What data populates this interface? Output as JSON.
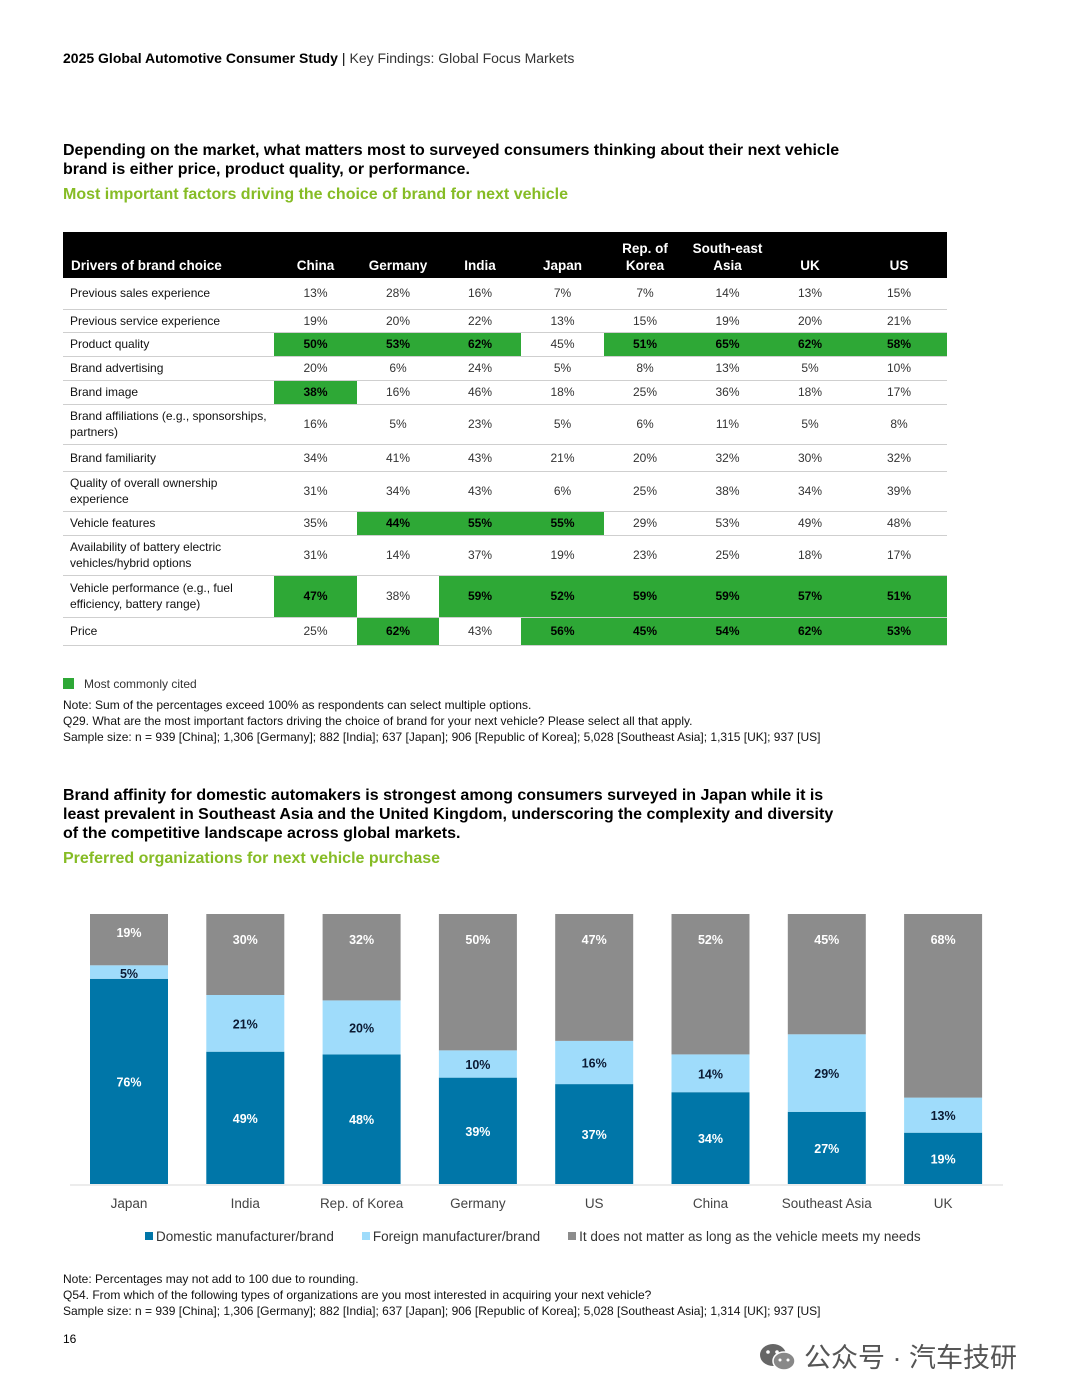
{
  "header": {
    "title": "2025 Global Automotive Consumer Study",
    "separator": "|",
    "subtitle": "Key Findings: Global Focus Markets"
  },
  "section1": {
    "headline": "Depending on the market, what matters most to surveyed consumers thinking about their next vehicle brand is either price, product quality, or performance.",
    "subtitle": "Most important factors driving the choice of brand for next vehicle"
  },
  "table": {
    "headers": [
      "Drivers of brand choice",
      "China",
      "Germany",
      "India",
      "Japan",
      "Rep. of Korea",
      "South-east Asia",
      "UK",
      "US"
    ],
    "rows": [
      {
        "label": "Previous sales experience",
        "values": [
          "13%",
          "28%",
          "16%",
          "7%",
          "7%",
          "14%",
          "13%",
          "15%"
        ],
        "hl": [
          0,
          0,
          0,
          0,
          0,
          0,
          0,
          0
        ]
      },
      {
        "label": "Previous service experience",
        "values": [
          "19%",
          "20%",
          "22%",
          "13%",
          "15%",
          "19%",
          "20%",
          "21%"
        ],
        "hl": [
          0,
          0,
          0,
          0,
          0,
          0,
          0,
          0
        ]
      },
      {
        "label": "Product quality",
        "values": [
          "50%",
          "53%",
          "62%",
          "45%",
          "51%",
          "65%",
          "62%",
          "58%"
        ],
        "hl": [
          1,
          1,
          1,
          0,
          1,
          1,
          1,
          1
        ]
      },
      {
        "label": "Brand advertising",
        "values": [
          "20%",
          "6%",
          "24%",
          "5%",
          "8%",
          "13%",
          "5%",
          "10%"
        ],
        "hl": [
          0,
          0,
          0,
          0,
          0,
          0,
          0,
          0
        ]
      },
      {
        "label": "Brand image",
        "values": [
          "38%",
          "16%",
          "46%",
          "18%",
          "25%",
          "36%",
          "18%",
          "17%"
        ],
        "hl": [
          1,
          0,
          0,
          0,
          0,
          0,
          0,
          0
        ]
      },
      {
        "label": "Brand affiliations (e.g., sponsorships, partners)",
        "values": [
          "16%",
          "5%",
          "23%",
          "5%",
          "6%",
          "11%",
          "5%",
          "8%"
        ],
        "hl": [
          0,
          0,
          0,
          0,
          0,
          0,
          0,
          0
        ]
      },
      {
        "label": "Brand familiarity",
        "values": [
          "34%",
          "41%",
          "43%",
          "21%",
          "20%",
          "32%",
          "30%",
          "32%"
        ],
        "hl": [
          0,
          0,
          0,
          0,
          0,
          0,
          0,
          0
        ]
      },
      {
        "label": "Quality of overall ownership experience",
        "values": [
          "31%",
          "34%",
          "43%",
          "6%",
          "25%",
          "38%",
          "34%",
          "39%"
        ],
        "hl": [
          0,
          0,
          0,
          0,
          0,
          0,
          0,
          0
        ]
      },
      {
        "label": "Vehicle features",
        "values": [
          "35%",
          "44%",
          "55%",
          "55%",
          "29%",
          "53%",
          "49%",
          "48%"
        ],
        "hl": [
          0,
          1,
          1,
          1,
          0,
          0,
          0,
          0
        ]
      },
      {
        "label": "Availability of battery electric vehicles/hybrid options",
        "values": [
          "31%",
          "14%",
          "37%",
          "19%",
          "23%",
          "25%",
          "18%",
          "17%"
        ],
        "hl": [
          0,
          0,
          0,
          0,
          0,
          0,
          0,
          0
        ]
      },
      {
        "label": "Vehicle performance (e.g., fuel efficiency, battery range)",
        "values": [
          "47%",
          "38%",
          "59%",
          "52%",
          "59%",
          "59%",
          "57%",
          "51%"
        ],
        "hl": [
          1,
          0,
          1,
          1,
          1,
          1,
          1,
          1
        ]
      },
      {
        "label": "Price",
        "values": [
          "25%",
          "62%",
          "43%",
          "56%",
          "45%",
          "54%",
          "62%",
          "53%"
        ],
        "hl": [
          0,
          1,
          0,
          1,
          1,
          1,
          1,
          1
        ]
      }
    ],
    "legend": "Most commonly cited",
    "highlight_color": "#2ea836"
  },
  "notes1": [
    "Note: Sum of the percentages exceed 100% as respondents can select multiple options.",
    "Q29. What are the most important factors driving the choice of brand for your next vehicle? Please select all that apply.",
    "Sample size: n = 939 [China]; 1,306 [Germany]; 882 [India]; 637 [Japan]; 906 [Republic of Korea]; 5,028 [Southeast Asia]; 1,315 [UK]; 937 [US]"
  ],
  "section2": {
    "headline": "Brand affinity for domestic automakers is strongest among consumers surveyed in Japan while it is least prevalent in Southeast Asia and the United Kingdom, underscoring the complexity and diversity of the competitive landscape across global markets.",
    "subtitle": "Preferred organizations for next vehicle purchase"
  },
  "chart_data": {
    "type": "bar",
    "stacked": true,
    "categories": [
      "Japan",
      "India",
      "Rep. of Korea",
      "Germany",
      "US",
      "China",
      "Southeast Asia",
      "UK"
    ],
    "series": [
      {
        "name": "Domestic manufacturer/brand",
        "values": [
          76,
          49,
          48,
          39,
          37,
          34,
          27,
          19
        ],
        "color": "#0076a8"
      },
      {
        "name": "Foreign manufacturer/brand",
        "values": [
          5,
          21,
          20,
          10,
          16,
          14,
          29,
          13
        ],
        "color": "#9fdcfb"
      },
      {
        "name": "It does not matter as long as the vehicle meets my needs",
        "values": [
          19,
          30,
          32,
          50,
          47,
          52,
          45,
          68
        ],
        "color": "#8c8c8c"
      }
    ],
    "ylim": [
      0,
      100
    ],
    "grid": false,
    "legend": "bottom"
  },
  "notes2": [
    "Note: Percentages may not add to 100 due to rounding.",
    "Q54. From which of the following types of organizations are you most interested in acquiring your next vehicle?",
    "Sample size: n = 939 [China]; 1,306 [Germany]; 882 [India]; 637 [Japan]; 906 [Republic of Korea]; 5,028 [Southeast Asia]; 1,314 [UK]; 937 [US]"
  ],
  "page_number": "16",
  "watermark": {
    "text": "公众号 · 汽车技研",
    "icon": "wechat-icon"
  }
}
